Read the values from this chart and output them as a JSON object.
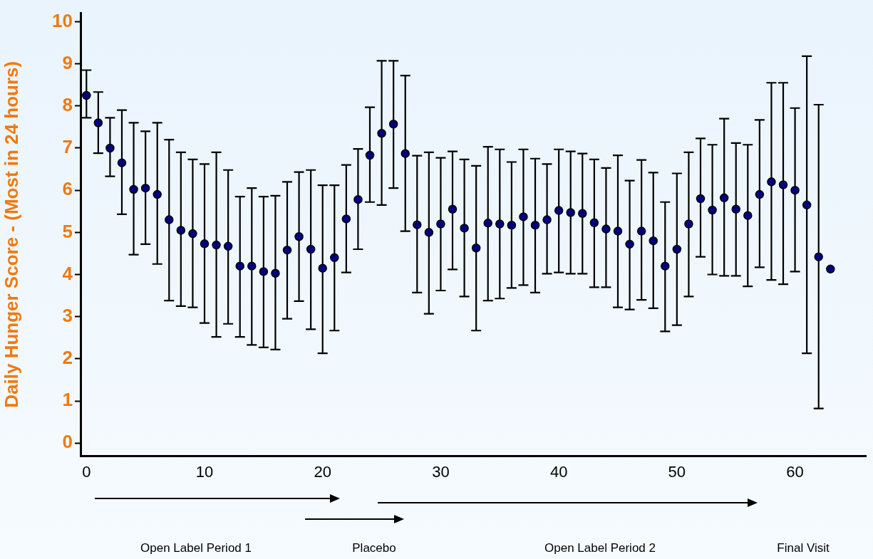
{
  "chart_data": {
    "type": "scatter",
    "ylabel": "Daily Hunger Score - (Most in 24 hours)",
    "x": [
      0,
      1,
      2,
      3,
      4,
      5,
      6,
      7,
      8,
      9,
      10,
      11,
      12,
      13,
      14,
      15,
      16,
      17,
      18,
      19,
      20,
      21,
      22,
      23,
      24,
      25,
      26,
      27,
      28,
      29,
      30,
      31,
      32,
      33,
      34,
      35,
      36,
      37,
      38,
      39,
      40,
      41,
      42,
      43,
      44,
      45,
      46,
      47,
      48,
      49,
      50,
      51,
      52,
      53,
      54,
      55,
      56,
      57,
      58,
      59,
      60,
      61,
      62,
      63
    ],
    "series": [
      {
        "color": "#000080",
        "values": [
          8.25,
          7.6,
          7.0,
          6.65,
          6.02,
          6.05,
          5.9,
          5.3,
          5.05,
          4.97,
          4.73,
          4.7,
          4.67,
          4.2,
          4.2,
          4.07,
          4.03,
          4.58,
          4.9,
          4.6,
          4.15,
          4.4,
          5.32,
          5.78,
          6.83,
          7.35,
          7.57,
          6.87,
          5.18,
          5.0,
          5.2,
          5.55,
          5.1,
          4.63,
          5.22,
          5.2,
          5.17,
          5.37,
          5.17,
          5.3,
          5.52,
          5.47,
          5.45,
          5.23,
          5.08,
          5.03,
          4.72,
          5.03,
          4.8,
          4.2,
          4.6,
          5.2,
          5.8,
          5.53,
          5.82,
          5.55,
          5.4,
          5.9,
          6.2,
          6.13,
          6.0,
          5.65,
          4.42,
          4.13
        ],
        "errors": [
          [
            7.72,
            8.85
          ],
          [
            6.88,
            8.33
          ],
          [
            6.33,
            7.72
          ],
          [
            5.43,
            7.9
          ],
          [
            4.47,
            7.6
          ],
          [
            4.72,
            7.4
          ],
          [
            4.25,
            7.6
          ],
          [
            3.38,
            7.2
          ],
          [
            3.25,
            6.9
          ],
          [
            3.22,
            6.73
          ],
          [
            2.85,
            6.62
          ],
          [
            2.52,
            6.9
          ],
          [
            2.83,
            6.48
          ],
          [
            2.52,
            5.85
          ],
          [
            2.33,
            6.05
          ],
          [
            2.27,
            5.85
          ],
          [
            2.22,
            5.87
          ],
          [
            2.95,
            6.2
          ],
          [
            3.37,
            6.43
          ],
          [
            2.7,
            6.48
          ],
          [
            2.13,
            6.12
          ],
          [
            2.67,
            6.12
          ],
          [
            4.05,
            6.6
          ],
          [
            4.6,
            6.98
          ],
          [
            5.72,
            7.97
          ],
          [
            5.65,
            9.07
          ],
          [
            6.05,
            9.07
          ],
          [
            5.03,
            8.72
          ],
          [
            3.57,
            6.82
          ],
          [
            3.07,
            6.9
          ],
          [
            3.62,
            6.77
          ],
          [
            4.12,
            6.92
          ],
          [
            3.48,
            6.73
          ],
          [
            2.67,
            6.58
          ],
          [
            3.38,
            7.03
          ],
          [
            3.43,
            6.97
          ],
          [
            3.68,
            6.67
          ],
          [
            3.75,
            6.97
          ],
          [
            3.57,
            6.75
          ],
          [
            4.02,
            6.62
          ],
          [
            4.05,
            6.97
          ],
          [
            4.02,
            6.92
          ],
          [
            4.02,
            6.87
          ],
          [
            3.7,
            6.73
          ],
          [
            3.7,
            6.53
          ],
          [
            3.22,
            6.83
          ],
          [
            3.17,
            6.23
          ],
          [
            3.4,
            6.72
          ],
          [
            3.2,
            6.42
          ],
          [
            2.65,
            5.72
          ],
          [
            2.8,
            6.4
          ],
          [
            3.48,
            6.9
          ],
          [
            4.42,
            7.23
          ],
          [
            4.0,
            7.08
          ],
          [
            3.97,
            7.7
          ],
          [
            3.97,
            7.12
          ],
          [
            3.72,
            7.08
          ],
          [
            4.17,
            7.67
          ],
          [
            3.87,
            8.55
          ],
          [
            3.77,
            8.55
          ],
          [
            4.07,
            7.95
          ],
          [
            2.13,
            9.18
          ],
          [
            0.82,
            8.03
          ],
          null
        ]
      }
    ],
    "xlim": [
      -0.5,
      66
    ],
    "xticks": [
      0,
      10,
      20,
      30,
      40,
      50,
      60
    ],
    "ylim": [
      -0.3,
      10.2
    ],
    "yticks": [
      0,
      1,
      2,
      3,
      4,
      5,
      6,
      7,
      8,
      9,
      10
    ],
    "marker": "circle",
    "grid": false,
    "legend": false,
    "annotations": [
      "Open Label Period 1",
      "Placebo",
      "Open Label Period 2",
      "Final Visit"
    ]
  }
}
